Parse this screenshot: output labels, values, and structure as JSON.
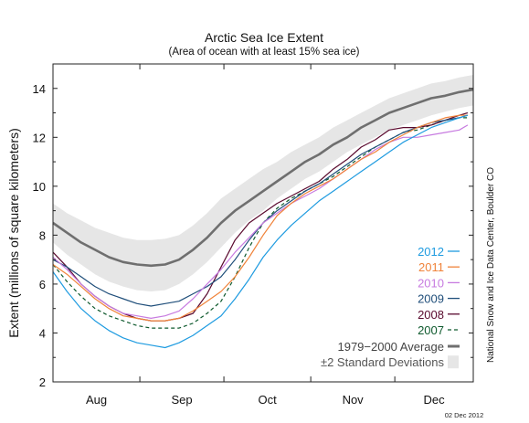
{
  "chart_data": {
    "type": "line",
    "title": "Arctic Sea Ice Extent",
    "subtitle": "(Area of ocean with at least 15% sea ice)",
    "ylabel": "Extent (millions of square kilometers)",
    "xlabel": "",
    "ylim": [
      2,
      15
    ],
    "yticks": [
      2,
      4,
      6,
      8,
      10,
      12,
      14
    ],
    "xlim": [
      0,
      150
    ],
    "months": [
      {
        "label": "Aug",
        "start": 0,
        "end": 31
      },
      {
        "label": "Sep",
        "start": 31,
        "end": 61
      },
      {
        "label": "Oct",
        "start": 61,
        "end": 92
      },
      {
        "label": "Nov",
        "start": 92,
        "end": 122
      },
      {
        "label": "Dec",
        "start": 122,
        "end": 150
      }
    ],
    "x_unit": "days since Aug 1",
    "grid": false,
    "legend_position": "bottom-right",
    "series": [
      {
        "name": "2012",
        "color": "#1e9be0",
        "dash": "solid",
        "x": [
          0,
          5,
          10,
          15,
          20,
          25,
          30,
          35,
          40,
          45,
          50,
          55,
          60,
          65,
          70,
          75,
          80,
          85,
          90,
          95,
          100,
          105,
          110,
          115,
          120,
          125,
          130,
          135,
          140,
          145,
          148
        ],
        "y": [
          6.5,
          5.7,
          5.0,
          4.5,
          4.1,
          3.8,
          3.6,
          3.5,
          3.4,
          3.6,
          3.9,
          4.3,
          4.7,
          5.4,
          6.2,
          7.1,
          7.8,
          8.4,
          8.9,
          9.4,
          9.8,
          10.2,
          10.6,
          11.0,
          11.4,
          11.8,
          12.1,
          12.4,
          12.6,
          12.8,
          12.9
        ]
      },
      {
        "name": "2011",
        "color": "#f0833a",
        "dash": "solid",
        "x": [
          0,
          5,
          10,
          15,
          20,
          25,
          30,
          35,
          40,
          45,
          50,
          55,
          60,
          65,
          70,
          75,
          80,
          85,
          90,
          95,
          100,
          105,
          110,
          115,
          120,
          125,
          130,
          135,
          140,
          145,
          148
        ],
        "y": [
          6.8,
          6.4,
          5.9,
          5.4,
          5.0,
          4.7,
          4.6,
          4.5,
          4.5,
          4.6,
          4.9,
          5.3,
          5.7,
          6.3,
          7.1,
          8.0,
          8.8,
          9.3,
          9.7,
          10.0,
          10.3,
          10.7,
          11.1,
          11.4,
          11.8,
          12.1,
          12.4,
          12.6,
          12.8,
          12.9,
          12.9
        ]
      },
      {
        "name": "2010",
        "color": "#c77be0",
        "dash": "solid",
        "x": [
          0,
          5,
          10,
          15,
          20,
          25,
          30,
          35,
          40,
          45,
          50,
          55,
          60,
          65,
          70,
          75,
          80,
          85,
          90,
          95,
          100,
          105,
          110,
          115,
          120,
          125,
          130,
          135,
          140,
          145,
          148
        ],
        "y": [
          7.1,
          6.6,
          6.0,
          5.5,
          5.1,
          4.8,
          4.7,
          4.6,
          4.7,
          4.9,
          5.4,
          6.0,
          6.6,
          7.3,
          7.9,
          8.5,
          8.9,
          9.3,
          9.6,
          9.9,
          10.3,
          10.7,
          11.1,
          11.5,
          11.8,
          12.0,
          12.0,
          12.1,
          12.2,
          12.3,
          12.5
        ]
      },
      {
        "name": "2009",
        "color": "#1f4e7a",
        "dash": "solid",
        "x": [
          0,
          5,
          10,
          15,
          20,
          25,
          30,
          35,
          40,
          45,
          50,
          55,
          60,
          65,
          70,
          75,
          80,
          85,
          90,
          95,
          100,
          105,
          110,
          115,
          120,
          125,
          130,
          135,
          140,
          145,
          148
        ],
        "y": [
          7.0,
          6.7,
          6.3,
          5.9,
          5.6,
          5.4,
          5.2,
          5.1,
          5.2,
          5.3,
          5.6,
          5.9,
          6.3,
          7.0,
          7.8,
          8.5,
          9.0,
          9.4,
          9.8,
          10.1,
          10.5,
          10.9,
          11.3,
          11.6,
          11.9,
          12.2,
          12.4,
          12.6,
          12.7,
          12.8,
          12.9
        ]
      },
      {
        "name": "2008",
        "color": "#5a0a2e",
        "dash": "solid",
        "x": [
          0,
          5,
          10,
          15,
          20,
          25,
          30,
          35,
          40,
          45,
          50,
          55,
          60,
          65,
          70,
          75,
          80,
          85,
          90,
          95,
          100,
          105,
          110,
          115,
          120,
          125,
          130,
          135,
          140,
          145,
          148
        ],
        "y": [
          7.3,
          6.7,
          6.0,
          5.5,
          5.1,
          4.8,
          4.6,
          4.5,
          4.5,
          4.6,
          4.8,
          5.6,
          6.7,
          7.8,
          8.5,
          8.9,
          9.3,
          9.6,
          9.9,
          10.2,
          10.7,
          11.1,
          11.6,
          11.9,
          12.3,
          12.4,
          12.4,
          12.5,
          12.7,
          12.9,
          13.0
        ]
      },
      {
        "name": "2007",
        "color": "#0f5a2e",
        "dash": "dashed",
        "x": [
          0,
          5,
          10,
          15,
          20,
          25,
          30,
          35,
          40,
          45,
          50,
          55,
          60,
          65,
          70,
          75,
          80,
          85,
          90,
          95,
          100,
          105,
          110,
          115,
          120,
          125,
          130,
          135,
          140,
          145,
          148
        ],
        "y": [
          6.8,
          6.1,
          5.5,
          5.0,
          4.7,
          4.5,
          4.3,
          4.2,
          4.2,
          4.2,
          4.4,
          4.8,
          5.3,
          6.3,
          7.5,
          8.5,
          9.1,
          9.5,
          9.8,
          10.1,
          10.4,
          10.8,
          11.2,
          11.6,
          11.9,
          12.2,
          12.3,
          12.5,
          12.7,
          12.8,
          12.8
        ]
      },
      {
        "name": "1979−2000 Average",
        "color": "#6f6f6f",
        "dash": "solid",
        "x": [
          0,
          5,
          10,
          15,
          20,
          25,
          30,
          35,
          40,
          45,
          50,
          55,
          60,
          65,
          70,
          75,
          80,
          85,
          90,
          95,
          100,
          105,
          110,
          115,
          120,
          125,
          130,
          135,
          140,
          145,
          150
        ],
        "y": [
          8.5,
          8.1,
          7.7,
          7.4,
          7.1,
          6.9,
          6.8,
          6.75,
          6.8,
          7.0,
          7.4,
          7.9,
          8.5,
          9.0,
          9.4,
          9.8,
          10.2,
          10.6,
          11.0,
          11.3,
          11.7,
          12.0,
          12.4,
          12.7,
          13.0,
          13.2,
          13.4,
          13.6,
          13.7,
          13.85,
          13.95
        ]
      }
    ],
    "band": {
      "name": "±2 Standard Deviations",
      "color": "#e6e6e6",
      "x": [
        0,
        5,
        10,
        15,
        20,
        25,
        30,
        35,
        40,
        45,
        50,
        55,
        60,
        65,
        70,
        75,
        80,
        85,
        90,
        95,
        100,
        105,
        110,
        115,
        120,
        125,
        130,
        135,
        140,
        145,
        150
      ],
      "lower": [
        7.7,
        7.2,
        6.8,
        6.4,
        6.1,
        5.9,
        5.75,
        5.7,
        5.75,
        6.0,
        6.4,
        6.9,
        7.5,
        8.1,
        8.6,
        9.0,
        9.5,
        9.9,
        10.3,
        10.6,
        11.0,
        11.4,
        11.7,
        12.0,
        12.3,
        12.5,
        12.7,
        12.9,
        13.05,
        13.2,
        13.3
      ],
      "upper": [
        9.3,
        8.9,
        8.6,
        8.3,
        8.1,
        7.9,
        7.8,
        7.8,
        7.85,
        8.0,
        8.4,
        8.9,
        9.5,
        9.9,
        10.3,
        10.7,
        11.0,
        11.4,
        11.7,
        12.0,
        12.4,
        12.7,
        13.0,
        13.3,
        13.6,
        13.8,
        14.0,
        14.2,
        14.3,
        14.45,
        14.55
      ]
    }
  },
  "credit": "National Snow and Ice Data Center, Boulder CO",
  "date_stamp": "02 Dec 2012"
}
